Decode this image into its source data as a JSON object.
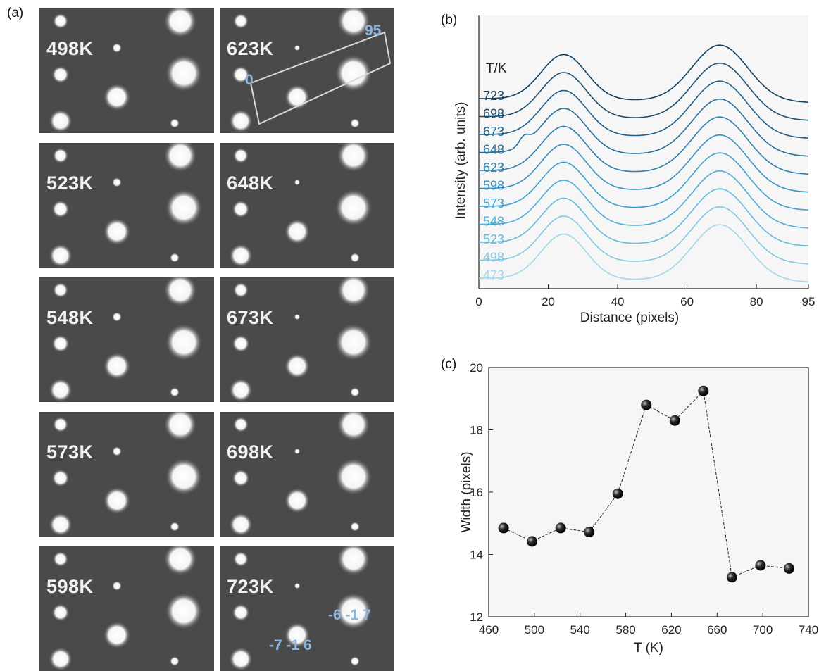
{
  "panel_labels": {
    "a": "(a)",
    "b": "(b)",
    "c": "(c)"
  },
  "panel_a": {
    "tiles": [
      {
        "label": "498K"
      },
      {
        "label": "623K"
      },
      {
        "label": "523K"
      },
      {
        "label": "648K"
      },
      {
        "label": "548K"
      },
      {
        "label": "673K"
      },
      {
        "label": "573K"
      },
      {
        "label": "698K"
      },
      {
        "label": "598K"
      },
      {
        "label": "723K"
      }
    ],
    "annotations": {
      "box_start": "0",
      "box_end": "95",
      "index_left": "-7 -1 6",
      "index_right": "-6 -1 7"
    },
    "annotation_color": "#8fb6e0"
  },
  "chart_data": [
    {
      "id": "b",
      "type": "line",
      "xlabel": "Distance (pixels)",
      "ylabel": "Intensity (arb. units)",
      "legend_title": "T/K",
      "xlim": [
        0,
        95
      ],
      "xticks": [
        "0",
        "20",
        "40",
        "60",
        "80",
        "95"
      ],
      "series": [
        {
          "name": "723",
          "color": "#123f5e"
        },
        {
          "name": "698",
          "color": "#1a4f73"
        },
        {
          "name": "673",
          "color": "#1f5f86"
        },
        {
          "name": "648",
          "color": "#266f99"
        },
        {
          "name": "623",
          "color": "#2c80ad"
        },
        {
          "name": "598",
          "color": "#3592c0"
        },
        {
          "name": "573",
          "color": "#3ea1cd"
        },
        {
          "name": "548",
          "color": "#4eaed6"
        },
        {
          "name": "523",
          "color": "#66badc"
        },
        {
          "name": "498",
          "color": "#82c8e3"
        },
        {
          "name": "473",
          "color": "#a3d6ea"
        }
      ]
    },
    {
      "id": "c",
      "type": "scatter",
      "xlabel": "T (K)",
      "ylabel": "Width (pixels)",
      "xlim": [
        460,
        740
      ],
      "ylim": [
        12,
        20
      ],
      "xticks": [
        "460",
        "500",
        "540",
        "580",
        "620",
        "660",
        "700",
        "740"
      ],
      "yticks": [
        "12",
        "14",
        "16",
        "18",
        "20"
      ],
      "x": [
        473,
        498,
        523,
        548,
        573,
        598,
        623,
        648,
        673,
        698,
        723
      ],
      "y": [
        14.85,
        14.42,
        14.85,
        14.72,
        15.95,
        18.8,
        18.3,
        19.25,
        13.27,
        13.65,
        13.55
      ]
    }
  ]
}
